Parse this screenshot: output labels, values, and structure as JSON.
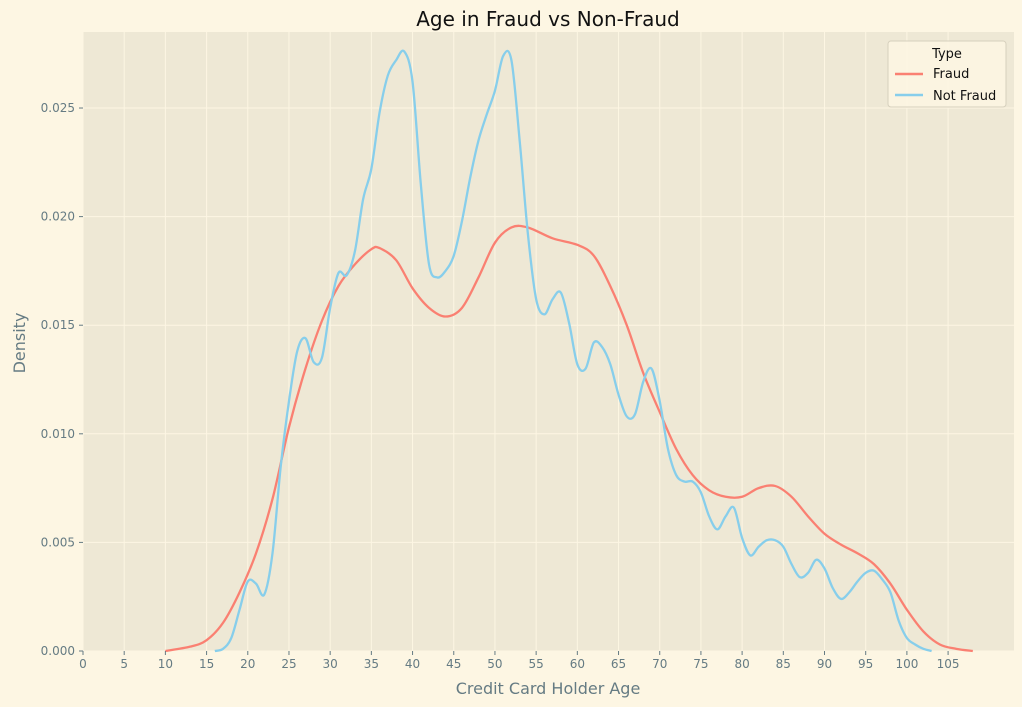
{
  "chart_data": {
    "type": "line",
    "title": "Age in Fraud vs Non-Fraud",
    "xlabel": "Credit Card Holder Age",
    "ylabel": "Density",
    "xlim": [
      0,
      113
    ],
    "ylim": [
      0,
      0.0285
    ],
    "xticks": [
      0,
      5,
      10,
      15,
      20,
      25,
      30,
      35,
      40,
      45,
      50,
      55,
      60,
      65,
      70,
      75,
      80,
      85,
      90,
      95,
      100,
      105
    ],
    "xtick_labels": [
      "0",
      "5",
      "10",
      "15",
      "20",
      "25",
      "30",
      "35",
      "40",
      "45",
      "50",
      "55",
      "60",
      "65",
      "70",
      "75",
      "80",
      "85",
      "90",
      "95",
      "100",
      "105"
    ],
    "yticks": [
      0,
      0.005,
      0.01,
      0.015,
      0.02,
      0.025
    ],
    "ytick_labels": [
      "0.000",
      "0.005",
      "0.010",
      "0.015",
      "0.020",
      "0.025"
    ],
    "grid": true,
    "legend": {
      "title": "Type",
      "placement": "top-right"
    },
    "series": [
      {
        "name": "Fraud",
        "color": "#fa8072",
        "points": [
          [
            10,
            0.0
          ],
          [
            13,
            0.0002
          ],
          [
            15,
            0.0005
          ],
          [
            17,
            0.0013
          ],
          [
            19,
            0.0027
          ],
          [
            21,
            0.0045
          ],
          [
            23,
            0.007
          ],
          [
            25,
            0.0103
          ],
          [
            27,
            0.013
          ],
          [
            29,
            0.0152
          ],
          [
            31,
            0.0168
          ],
          [
            33,
            0.0178
          ],
          [
            35,
            0.0185
          ],
          [
            36,
            0.01855
          ],
          [
            38,
            0.018
          ],
          [
            40,
            0.0167
          ],
          [
            42,
            0.0158
          ],
          [
            44,
            0.0154
          ],
          [
            46,
            0.0158
          ],
          [
            48,
            0.0172
          ],
          [
            50,
            0.0188
          ],
          [
            52,
            0.0195
          ],
          [
            54,
            0.0195
          ],
          [
            57,
            0.019
          ],
          [
            60,
            0.0187
          ],
          [
            62,
            0.0182
          ],
          [
            64,
            0.0168
          ],
          [
            66,
            0.015
          ],
          [
            68,
            0.0128
          ],
          [
            70,
            0.011
          ],
          [
            72,
            0.0093
          ],
          [
            74,
            0.0081
          ],
          [
            76,
            0.0074
          ],
          [
            78,
            0.0071
          ],
          [
            80,
            0.0071
          ],
          [
            82,
            0.0075
          ],
          [
            84,
            0.0076
          ],
          [
            86,
            0.0071
          ],
          [
            88,
            0.0062
          ],
          [
            90,
            0.0054
          ],
          [
            92,
            0.0049
          ],
          [
            94,
            0.0045
          ],
          [
            96,
            0.004
          ],
          [
            98,
            0.0031
          ],
          [
            100,
            0.0019
          ],
          [
            102,
            0.0009
          ],
          [
            104,
            0.0003
          ],
          [
            106,
            0.0001
          ],
          [
            108,
            0.0
          ]
        ]
      },
      {
        "name": "Not Fraud",
        "color": "#87ceeb",
        "points": [
          [
            16,
            0.0
          ],
          [
            17,
            0.0001
          ],
          [
            18,
            0.0006
          ],
          [
            19,
            0.0019
          ],
          [
            20,
            0.0032
          ],
          [
            21,
            0.0031
          ],
          [
            22,
            0.0026
          ],
          [
            23,
            0.0045
          ],
          [
            24,
            0.0085
          ],
          [
            25,
            0.0115
          ],
          [
            26,
            0.0138
          ],
          [
            27,
            0.0144
          ],
          [
            28,
            0.0133
          ],
          [
            29,
            0.0135
          ],
          [
            30,
            0.0158
          ],
          [
            31,
            0.0174
          ],
          [
            32,
            0.0173
          ],
          [
            33,
            0.0184
          ],
          [
            34,
            0.0208
          ],
          [
            35,
            0.0222
          ],
          [
            36,
            0.0248
          ],
          [
            37,
            0.0265
          ],
          [
            38,
            0.0272
          ],
          [
            39,
            0.0276
          ],
          [
            40,
            0.0262
          ],
          [
            41,
            0.0215
          ],
          [
            42,
            0.0178
          ],
          [
            43,
            0.0172
          ],
          [
            44,
            0.0175
          ],
          [
            45,
            0.0182
          ],
          [
            46,
            0.0198
          ],
          [
            47,
            0.0218
          ],
          [
            48,
            0.0235
          ],
          [
            49,
            0.0247
          ],
          [
            50,
            0.0258
          ],
          [
            51,
            0.0274
          ],
          [
            52,
            0.0272
          ],
          [
            53,
            0.0235
          ],
          [
            54,
            0.0192
          ],
          [
            55,
            0.0162
          ],
          [
            56,
            0.0155
          ],
          [
            57,
            0.0162
          ],
          [
            58,
            0.0165
          ],
          [
            59,
            0.0151
          ],
          [
            60,
            0.0132
          ],
          [
            61,
            0.013
          ],
          [
            62,
            0.0142
          ],
          [
            63,
            0.014
          ],
          [
            64,
            0.0132
          ],
          [
            65,
            0.0118
          ],
          [
            66,
            0.0108
          ],
          [
            67,
            0.0109
          ],
          [
            68,
            0.0124
          ],
          [
            69,
            0.013
          ],
          [
            70,
            0.0115
          ],
          [
            71,
            0.0093
          ],
          [
            72,
            0.0081
          ],
          [
            73,
            0.0078
          ],
          [
            74,
            0.0078
          ],
          [
            75,
            0.0073
          ],
          [
            76,
            0.0062
          ],
          [
            77,
            0.0056
          ],
          [
            78,
            0.0062
          ],
          [
            79,
            0.0066
          ],
          [
            80,
            0.0052
          ],
          [
            81,
            0.0044
          ],
          [
            82,
            0.0048
          ],
          [
            83,
            0.0051
          ],
          [
            84,
            0.0051
          ],
          [
            85,
            0.0048
          ],
          [
            86,
            0.004
          ],
          [
            87,
            0.0034
          ],
          [
            88,
            0.0036
          ],
          [
            89,
            0.0042
          ],
          [
            90,
            0.0038
          ],
          [
            91,
            0.0029
          ],
          [
            92,
            0.0024
          ],
          [
            93,
            0.0027
          ],
          [
            94,
            0.0032
          ],
          [
            95,
            0.0036
          ],
          [
            96,
            0.0037
          ],
          [
            97,
            0.0033
          ],
          [
            98,
            0.0027
          ],
          [
            99,
            0.0014
          ],
          [
            100,
            0.0006
          ],
          [
            101,
            0.0003
          ],
          [
            102,
            0.0001
          ],
          [
            103,
            0.0
          ]
        ]
      }
    ]
  }
}
